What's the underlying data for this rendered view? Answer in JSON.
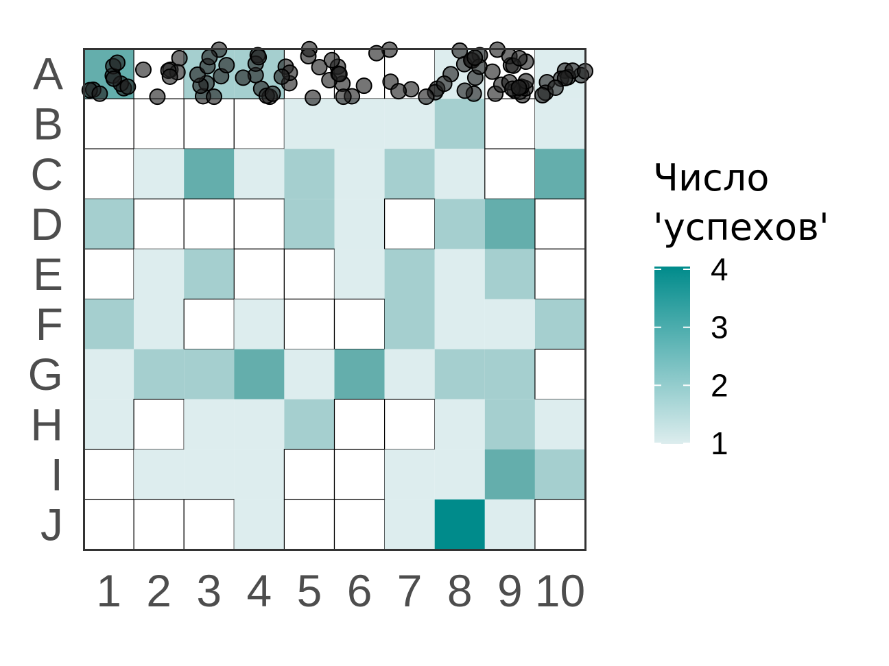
{
  "chart_data": {
    "type": "heatmap",
    "title": "",
    "xlabel": "",
    "ylabel": "",
    "x_categories": [
      "1",
      "2",
      "3",
      "4",
      "5",
      "6",
      "7",
      "8",
      "9",
      "10"
    ],
    "y_categories": [
      "A",
      "B",
      "C",
      "D",
      "E",
      "F",
      "G",
      "H",
      "I",
      "J"
    ],
    "values": [
      [
        3,
        0,
        2,
        2,
        0,
        0,
        0,
        1,
        0,
        1
      ],
      [
        0,
        0,
        0,
        0,
        1,
        1,
        1,
        2,
        0,
        1
      ],
      [
        0,
        1,
        3,
        1,
        2,
        1,
        2,
        1,
        0,
        3
      ],
      [
        2,
        0,
        0,
        0,
        2,
        1,
        0,
        2,
        3,
        0
      ],
      [
        0,
        1,
        2,
        0,
        0,
        1,
        2,
        1,
        2,
        0
      ],
      [
        2,
        1,
        0,
        1,
        0,
        0,
        2,
        1,
        1,
        2
      ],
      [
        1,
        2,
        2,
        3,
        1,
        3,
        1,
        2,
        2,
        0
      ],
      [
        1,
        0,
        1,
        1,
        2,
        0,
        0,
        1,
        2,
        1
      ],
      [
        0,
        1,
        1,
        1,
        0,
        0,
        1,
        1,
        3,
        2
      ],
      [
        0,
        0,
        0,
        1,
        0,
        0,
        1,
        4,
        1,
        0
      ]
    ],
    "points": [
      [
        0.58,
        0.54
      ],
      [
        0.8,
        0.79
      ],
      [
        0.19,
        0.82
      ],
      [
        3.43,
        0.53
      ],
      [
        3.54,
        0.8
      ],
      [
        2.38,
        0.95
      ],
      [
        2.74,
        0.55
      ],
      [
        3.47,
        0.13
      ],
      [
        5.35,
        0.95
      ],
      [
        7.78,
        0.9
      ],
      [
        9.24,
        0.67
      ],
      [
        9.92,
        0.53
      ],
      [
        8.75,
        0.93
      ],
      [
        7.05,
        0.8
      ],
      [
        6.53,
        0.81
      ],
      [
        4.57,
        0.98
      ],
      [
        4.5,
        0.01
      ],
      [
        0.74,
        0.7
      ],
      [
        2.45,
        0.69
      ],
      [
        2.85,
        0.33
      ],
      [
        4.7,
        0.37
      ],
      [
        7.75,
        0.24
      ],
      [
        9.21,
        0.88
      ],
      [
        9.6,
        0.44
      ],
      [
        1.91,
        0.19
      ],
      [
        3.71,
        0.96
      ],
      [
        5.59,
        0.74
      ],
      [
        6.12,
        0.66
      ],
      [
        7.01,
        0.87
      ],
      [
        0.12,
        0.83
      ],
      [
        0.88,
        0.76
      ],
      [
        4.03,
        0.36
      ],
      [
        4.1,
        0.69
      ],
      [
        5.16,
        0.7
      ],
      [
        7.32,
        0.51
      ],
      [
        7.81,
        0.58
      ],
      [
        8.25,
        0.02
      ],
      [
        8.21,
        0.9
      ],
      [
        8.6,
        0.84
      ],
      [
        1.73,
        0.42
      ],
      [
        2.33,
        0.74
      ],
      [
        2.7,
        0.02
      ],
      [
        5.07,
        0.36
      ],
      [
        6.83,
        0.96
      ],
      [
        7.59,
        0.31
      ],
      [
        7.9,
        0.13
      ],
      [
        8.52,
        0.33
      ],
      [
        8.7,
        0.86
      ],
      [
        0.59,
        0.35
      ],
      [
        0.6,
        0.6
      ],
      [
        1.87,
        0.47
      ],
      [
        4.11,
        0.48
      ],
      [
        6.1,
        0.02
      ],
      [
        7.73,
        0.23
      ],
      [
        8.81,
        0.79
      ],
      [
        9.52,
        0.6
      ],
      [
        9.66,
        0.57
      ],
      [
        0.32,
        0.9
      ],
      [
        1.19,
        0.42
      ],
      [
        1.47,
        0.96
      ],
      [
        2.27,
        0.52
      ],
      [
        2.47,
        0.35
      ],
      [
        3.18,
        0.58
      ],
      [
        3.43,
        0.3
      ],
      [
        3.65,
        0.94
      ],
      [
        4.95,
        0.23
      ],
      [
        5.08,
        0.5
      ],
      [
        5.84,
        0.09
      ],
      [
        6.28,
        0.85
      ],
      [
        7.5,
        0.04
      ],
      [
        7.6,
        0.84
      ],
      [
        8.33,
        0.72
      ],
      [
        8.82,
        0.26
      ],
      [
        9.15,
        0.93
      ],
      [
        0.67,
        0.28
      ],
      [
        2.51,
        0.17
      ],
      [
        3.49,
        0.17
      ],
      [
        4.48,
        0.15
      ],
      [
        4.9,
        0.63
      ],
      [
        7.19,
        0.7
      ],
      [
        8.15,
        0.46
      ],
      [
        8.49,
        0.15
      ],
      [
        9.75,
        0.44
      ],
      [
        10.0,
        0.45
      ],
      [
        1.69,
        0.44
      ],
      [
        2.6,
        0.96
      ],
      [
        3.95,
        0.56
      ],
      [
        8.57,
        0.34
      ],
      [
        8.73,
        0.76
      ],
      [
        8.82,
        0.65
      ],
      [
        9.6,
        0.59
      ],
      [
        9.41,
        0.78
      ],
      [
        1.72,
        0.56
      ],
      [
        3.77,
        0.9
      ],
      [
        5.1,
        0.51
      ],
      [
        5.18,
        0.96
      ],
      [
        7.89,
        0.36
      ],
      [
        7.8,
        0.18
      ],
      [
        8.49,
        0.67
      ],
      [
        8.69,
        0.19
      ],
      [
        8.55,
        0.8
      ],
      [
        8.68,
        0.78
      ]
    ],
    "legend": {
      "title": "Число\n'успехов'",
      "ticks": [
        "1",
        "2",
        "3",
        "4"
      ],
      "min": 1,
      "max": 4,
      "placement": "right",
      "color_low": "#ddedee",
      "color_high": "#008b8b"
    },
    "colors": {
      "zero": "#ffffff",
      "scale": [
        "#ddedee",
        "#a5cfcf",
        "#64aeac",
        "#008b8b"
      ],
      "point_fill": "#202020",
      "frame": "#333333",
      "grid": "#000000",
      "tick_text": "#4d4d4d"
    }
  }
}
